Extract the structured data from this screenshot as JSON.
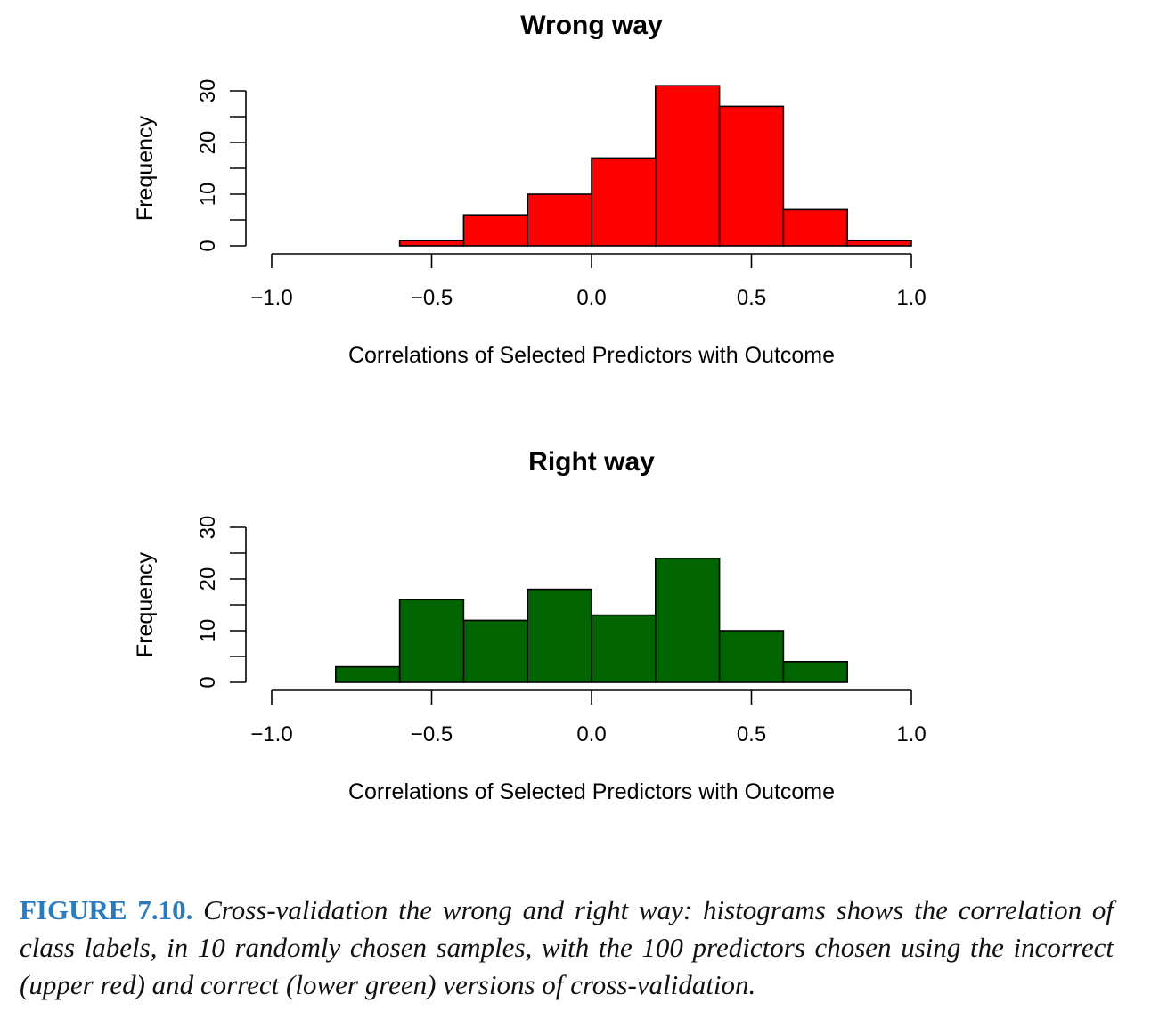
{
  "chart_data": [
    {
      "type": "bar",
      "title": "Wrong way",
      "xlabel": "Correlations of Selected Predictors with Outcome",
      "ylabel": "Frequency",
      "bin_edges": [
        -0.6,
        -0.4,
        -0.2,
        0.0,
        0.2,
        0.4,
        0.6,
        0.8,
        1.0
      ],
      "values": [
        1,
        6,
        10,
        17,
        31,
        27,
        7,
        1
      ],
      "xlim": [
        -1.0,
        1.0
      ],
      "ylim": [
        0,
        30
      ],
      "xticks": [
        -1.0,
        -0.5,
        0.0,
        0.5,
        1.0
      ],
      "xtick_labels": [
        "−1.0",
        "−0.5",
        "0.0",
        "0.5",
        "1.0"
      ],
      "yticks": [
        0,
        10,
        20,
        30
      ],
      "ytick_labels": [
        "0",
        "10",
        "20",
        "30"
      ],
      "grid": false,
      "color": "#ff0000"
    },
    {
      "type": "bar",
      "title": "Right way",
      "xlabel": "Correlations of Selected Predictors with Outcome",
      "ylabel": "Frequency",
      "bin_edges": [
        -0.8,
        -0.6,
        -0.4,
        -0.2,
        0.0,
        0.2,
        0.4,
        0.6,
        0.8
      ],
      "values": [
        3,
        16,
        12,
        18,
        13,
        24,
        10,
        4
      ],
      "xlim": [
        -1.0,
        1.0
      ],
      "ylim": [
        0,
        30
      ],
      "xticks": [
        -1.0,
        -0.5,
        0.0,
        0.5,
        1.0
      ],
      "xtick_labels": [
        "−1.0",
        "−0.5",
        "0.0",
        "0.5",
        "1.0"
      ],
      "yticks": [
        0,
        10,
        20,
        30
      ],
      "ytick_labels": [
        "0",
        "10",
        "20",
        "30"
      ],
      "grid": false,
      "color": "#006400"
    }
  ],
  "caption": {
    "label": "FIGURE 7.10.",
    "text": "Cross-validation the wrong and right way: histograms shows the correlation of class labels, in 10 randomly chosen samples, with the 100 predictors chosen using the incorrect (upper red) and correct (lower green) versions of cross-validation."
  }
}
